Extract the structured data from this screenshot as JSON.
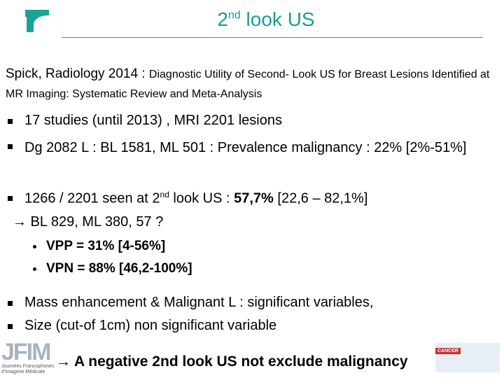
{
  "header": {
    "title_pre": "2",
    "title_sup": "nd",
    "title_post": " look US"
  },
  "reference": {
    "lead": "Spick, Radiology 2014 : ",
    "detail": "Diagnostic Utility of Second- Look US for Breast Lesions Identified at MR Imaging: Systematic Review and Meta-Analysis"
  },
  "bullets": [
    "17 studies (until 2013) , MRI 2201 lesions",
    "Dg 2082 L : BL 1581, ML 501 : Prevalence malignancy : 22% [2%-51%]"
  ],
  "seen": {
    "pre": "1266 / 2201 seen at 2",
    "sup": "nd",
    "mid": " look US : ",
    "bold": "57,7%",
    "post": " [22,6 – 82,1%]"
  },
  "arrow_line": "→ BL 829, ML 380, 57 ?",
  "sub_bullets": [
    "VPP  = 31% [4-56%]",
    "VPN = 88% [46,2-100%]"
  ],
  "bullets2": [
    "Mass enhancement & Malignant L :  significant variables,",
    "Size (cut-of 1cm) non significant variable"
  ],
  "conclusion": "→ A negative 2nd look US not exclude malignancy",
  "logos": {
    "left": "JFIM",
    "left_sub": "Journées Francophones d'Imagerie Médicale",
    "right": "CANCER"
  }
}
